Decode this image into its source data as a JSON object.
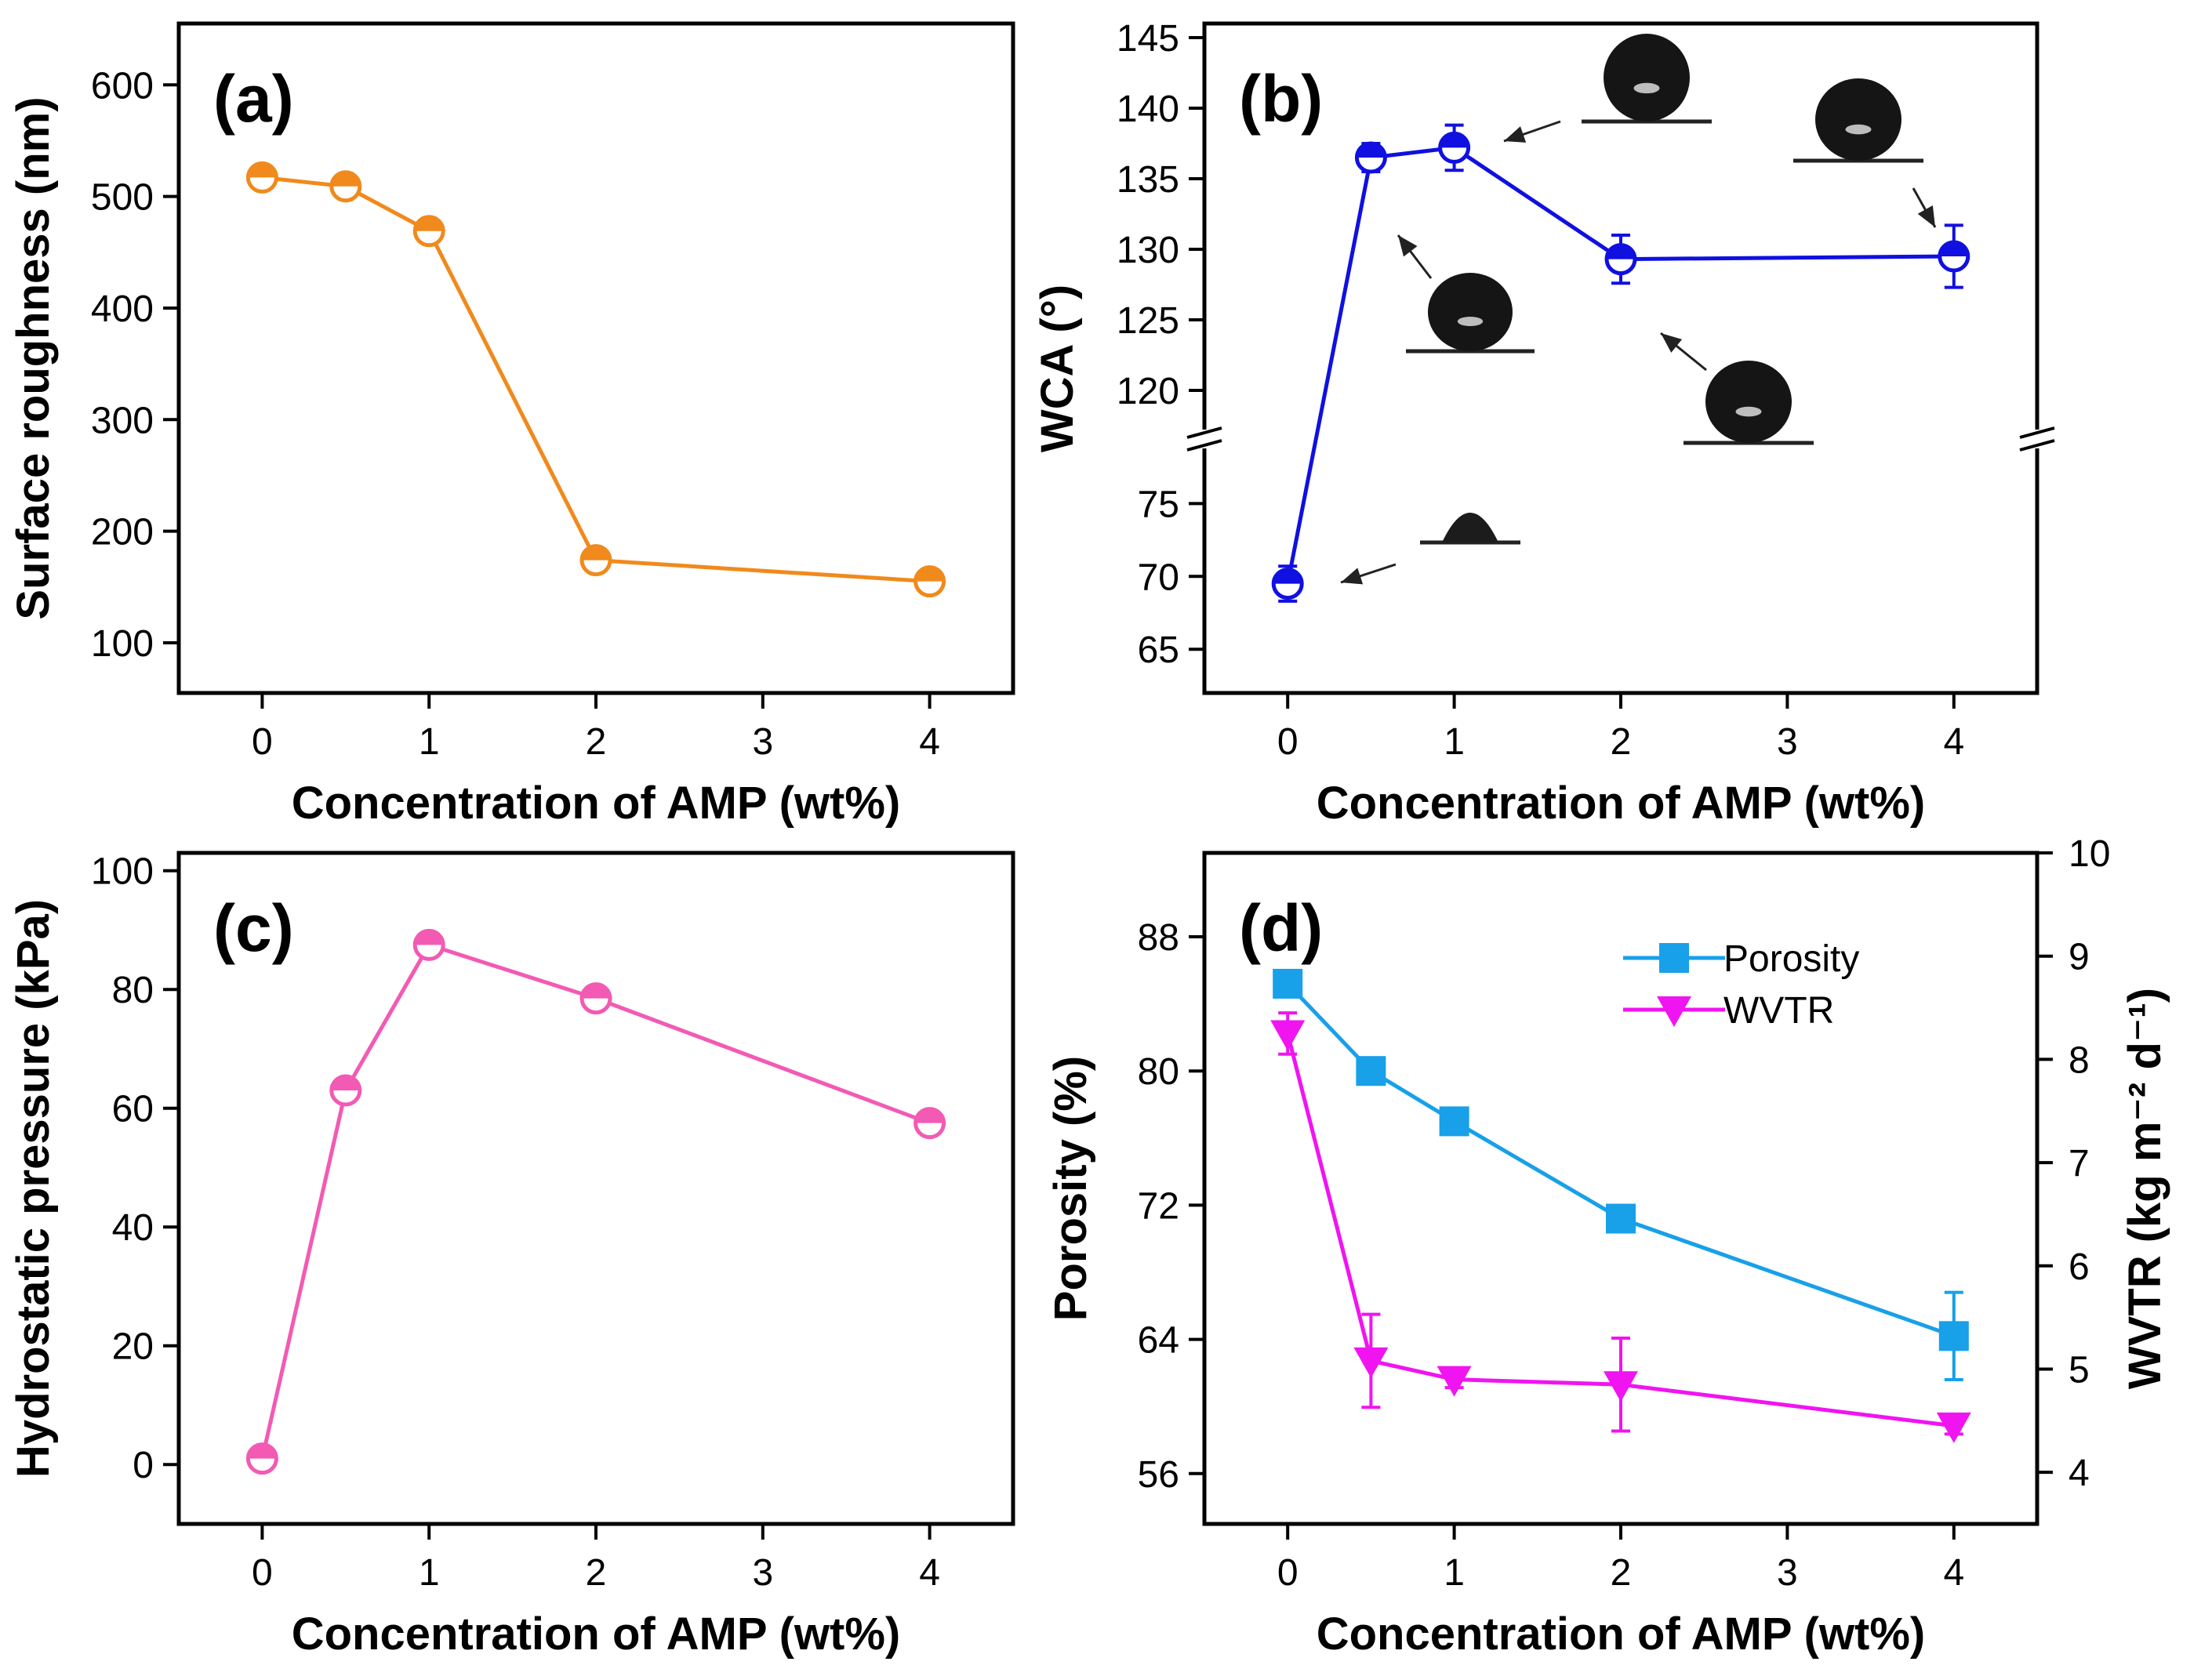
{
  "chart_data": [
    {
      "panel": "(a)",
      "type": "line",
      "xlabel": "Concentration of AMP (wt%)",
      "ylabel": "Surface roughness (nm)",
      "xlim": [
        -0.5,
        4.5
      ],
      "ylim": [
        55,
        655
      ],
      "xticks": [
        "0",
        "1",
        "2",
        "3",
        "4"
      ],
      "yticks": [
        "100",
        "200",
        "300",
        "400",
        "500",
        "600"
      ],
      "color": "#F08A1C",
      "series": [
        {
          "name": "Surface roughness",
          "marker": "circle-half",
          "x": [
            0,
            0.5,
            1,
            2,
            4
          ],
          "y": [
            517,
            509,
            469,
            174,
            155
          ],
          "err": [
            10,
            8,
            7,
            6,
            5
          ]
        }
      ]
    },
    {
      "panel": "(b)",
      "type": "line",
      "xlabel": "Concentration of AMP (wt%)",
      "ylabel": "WCA (°)",
      "xlim": [
        -0.5,
        4.5
      ],
      "broken_y_axis": {
        "lower_range": [
          62,
          79
        ],
        "upper_range": [
          117,
          146
        ]
      },
      "xticks": [
        "0",
        "1",
        "2",
        "3",
        "4"
      ],
      "yticks_lower": [
        "65",
        "70",
        "75"
      ],
      "yticks_upper": [
        "120",
        "125",
        "130",
        "135",
        "140",
        "145"
      ],
      "color": "#1010E0",
      "series": [
        {
          "name": "WCA",
          "marker": "circle-half",
          "x": [
            0,
            0.5,
            1,
            2,
            4
          ],
          "y": [
            69.5,
            136.5,
            137.2,
            129.3,
            129.5
          ],
          "err": [
            1.2,
            1.0,
            1.6,
            1.7,
            2.2
          ]
        }
      ],
      "insets": [
        "droplet image at 0 wt%",
        "droplet image at 0.5 wt%",
        "droplet image at 1 wt%",
        "droplet image at 2 wt%",
        "droplet image at 4 wt%"
      ]
    },
    {
      "panel": "(c)",
      "type": "line",
      "xlabel": "Concentration of AMP (wt%)",
      "ylabel": "Hydrostatic pressure (kPa)",
      "xlim": [
        -0.5,
        4.5
      ],
      "ylim": [
        -10,
        103
      ],
      "xticks": [
        "0",
        "1",
        "2",
        "3",
        "4"
      ],
      "yticks": [
        "0",
        "20",
        "40",
        "60",
        "80",
        "100"
      ],
      "color": "#F25AB4",
      "series": [
        {
          "name": "Hydrostatic pressure",
          "marker": "circle-half",
          "x": [
            0,
            0.5,
            1,
            2,
            4
          ],
          "y": [
            1,
            63,
            87.5,
            78.5,
            57.5
          ],
          "err": [
            1.5,
            1.2,
            1.3,
            1.5,
            1.5
          ]
        }
      ]
    },
    {
      "panel": "(d)",
      "type": "line",
      "xlabel": "Concentration of AMP (wt%)",
      "ylabel": "Porosity (%)",
      "ylabel_right": "WVTR (kg m⁻² d⁻¹)",
      "xlim": [
        -0.5,
        4.5
      ],
      "ylim": [
        53,
        93
      ],
      "ylim_right": [
        3.5,
        10
      ],
      "xticks": [
        "0",
        "1",
        "2",
        "3",
        "4"
      ],
      "yticks": [
        "56",
        "64",
        "72",
        "80",
        "88"
      ],
      "yticks_right": [
        "4",
        "5",
        "6",
        "7",
        "8",
        "9",
        "10"
      ],
      "legend_position": "top-right",
      "series": [
        {
          "name": "Porosity",
          "axis": "left",
          "color": "#18A0E8",
          "marker": "square",
          "x": [
            0,
            0.5,
            1,
            2,
            4
          ],
          "y": [
            85.2,
            80,
            77,
            71.2,
            64.2
          ],
          "err": [
            0.6,
            0.6,
            0.6,
            0.6,
            2.6
          ]
        },
        {
          "name": "WVTR",
          "axis": "right",
          "color": "#F014F0",
          "marker": "triangle-down",
          "x": [
            0,
            0.5,
            1,
            2,
            4
          ],
          "y": [
            8.25,
            5.08,
            4.9,
            4.85,
            4.45
          ],
          "err": [
            0.2,
            0.45,
            0.08,
            0.45,
            0.08
          ]
        }
      ],
      "legend": [
        "Porosity",
        "WVTR"
      ]
    }
  ]
}
